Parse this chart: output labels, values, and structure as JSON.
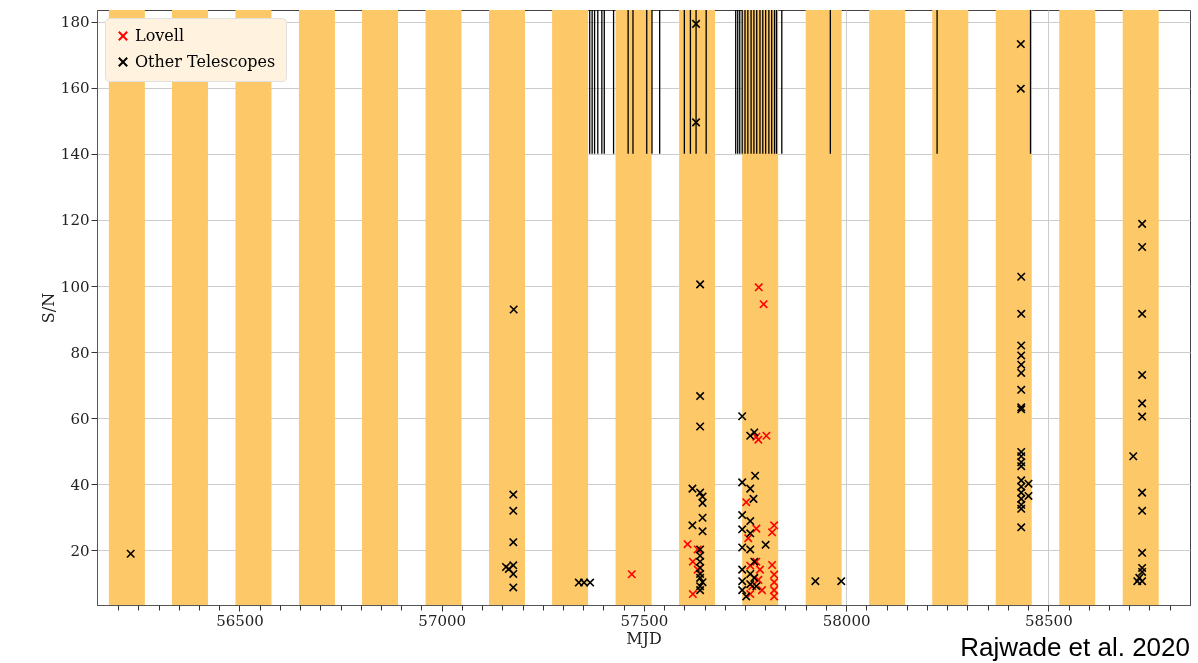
{
  "chart_data": {
    "type": "scatter",
    "xlabel": "MJD",
    "ylabel": "S/N",
    "xlim": [
      56160,
      58838
    ],
    "ylim": [
      3.5,
      183.5
    ],
    "xticks": [
      {
        "value": 56200,
        "label": null
      },
      {
        "value": 56250,
        "label": null
      },
      {
        "value": 56300,
        "label": null
      },
      {
        "value": 56350,
        "label": null
      },
      {
        "value": 56400,
        "label": null
      },
      {
        "value": 56450,
        "label": null
      },
      56500,
      {
        "value": 56550,
        "label": null
      },
      {
        "value": 56600,
        "label": null
      },
      {
        "value": 56650,
        "label": null
      },
      {
        "value": 56700,
        "label": null
      },
      {
        "value": 56750,
        "label": null
      },
      {
        "value": 56800,
        "label": null
      },
      {
        "value": 56850,
        "label": null
      },
      {
        "value": 56900,
        "label": null
      },
      {
        "value": 56950,
        "label": null
      },
      57000,
      {
        "value": 57050,
        "label": null
      },
      {
        "value": 57100,
        "label": null
      },
      {
        "value": 57150,
        "label": null
      },
      {
        "value": 57200,
        "label": null
      },
      {
        "value": 57250,
        "label": null
      },
      {
        "value": 57300,
        "label": null
      },
      {
        "value": 57350,
        "label": null
      },
      {
        "value": 57400,
        "label": null
      },
      {
        "value": 57450,
        "label": null
      },
      57500,
      {
        "value": 57550,
        "label": null
      },
      {
        "value": 57600,
        "label": null
      },
      {
        "value": 57650,
        "label": null
      },
      {
        "value": 57700,
        "label": null
      },
      {
        "value": 57750,
        "label": null
      },
      {
        "value": 57800,
        "label": null
      },
      {
        "value": 57850,
        "label": null
      },
      {
        "value": 57900,
        "label": null
      },
      {
        "value": 57950,
        "label": null
      },
      58000,
      {
        "value": 58050,
        "label": null
      },
      {
        "value": 58100,
        "label": null
      },
      {
        "value": 58150,
        "label": null
      },
      {
        "value": 58200,
        "label": null
      },
      {
        "value": 58250,
        "label": null
      },
      {
        "value": 58300,
        "label": null
      },
      {
        "value": 58350,
        "label": null
      },
      {
        "value": 58400,
        "label": null
      },
      {
        "value": 58450,
        "label": null
      },
      58500,
      {
        "value": 58550,
        "label": null
      },
      {
        "value": 58600,
        "label": null
      },
      {
        "value": 58650,
        "label": null
      },
      {
        "value": 58700,
        "label": null
      },
      {
        "value": 58750,
        "label": null
      },
      {
        "value": 58800,
        "label": null
      }
    ],
    "yticks": [
      20,
      40,
      60,
      80,
      100,
      120,
      140,
      160,
      180
    ],
    "grid": true,
    "legend": "top left",
    "marker": "cross",
    "annotations": [
      "Rajwade et al. 2020"
    ],
    "bands": [
      {
        "axis": "x",
        "from": 56177,
        "to": 56266,
        "color": "#fdc867"
      },
      {
        "axis": "x",
        "from": 56333,
        "to": 56422,
        "color": "#fdc867"
      },
      {
        "axis": "x",
        "from": 56490,
        "to": 56579,
        "color": "#fdc867"
      },
      {
        "axis": "x",
        "from": 56647,
        "to": 56736,
        "color": "#fdc867"
      },
      {
        "axis": "x",
        "from": 56803,
        "to": 56892,
        "color": "#fdc867"
      },
      {
        "axis": "x",
        "from": 56960,
        "to": 57049,
        "color": "#fdc867"
      },
      {
        "axis": "x",
        "from": 57117,
        "to": 57206,
        "color": "#fdc867"
      },
      {
        "axis": "x",
        "from": 57273,
        "to": 57362,
        "color": "#fdc867"
      },
      {
        "axis": "x",
        "from": 57430,
        "to": 57519,
        "color": "#fdc867"
      },
      {
        "axis": "x",
        "from": 57587,
        "to": 57676,
        "color": "#fdc867"
      },
      {
        "axis": "x",
        "from": 57743,
        "to": 57832,
        "color": "#fdc867"
      },
      {
        "axis": "x",
        "from": 57900,
        "to": 57989,
        "color": "#fdc867"
      },
      {
        "axis": "x",
        "from": 58057,
        "to": 58146,
        "color": "#fdc867"
      },
      {
        "axis": "x",
        "from": 58213,
        "to": 58302,
        "color": "#fdc867"
      },
      {
        "axis": "x",
        "from": 58370,
        "to": 58459,
        "color": "#fdc867"
      },
      {
        "axis": "x",
        "from": 58527,
        "to": 58616,
        "color": "#fdc867"
      },
      {
        "axis": "x",
        "from": 58684,
        "to": 58773,
        "color": "#fdc867"
      }
    ],
    "series": [
      {
        "type": "bar",
        "color": "#000000",
        "x": [
          57366,
          57372,
          57378,
          57386,
          57396,
          57402,
          57425,
          57461,
          57473,
          57507,
          57520,
          57539,
          57600,
          57615,
          57629,
          57654,
          57727,
          57732,
          57737,
          57743,
          57750,
          57757,
          57765,
          57772,
          57779,
          57787,
          57794,
          57801,
          57809,
          57816,
          57823,
          57828,
          57841,
          57961,
          58225,
          58456
        ],
        "base": [
          140,
          140,
          140,
          140,
          140,
          140,
          140,
          140,
          140,
          140,
          140,
          140,
          140,
          140,
          140,
          140,
          140,
          140,
          140,
          140,
          140,
          140,
          140,
          140,
          140,
          140,
          140,
          140,
          140,
          140,
          140,
          140,
          140,
          140,
          140,
          140
        ],
        "values": [
          43.5,
          43.5,
          43.5,
          43.5,
          43.5,
          43.5,
          43.5,
          43.5,
          43.5,
          43.5,
          43.5,
          43.5,
          43.5,
          43.5,
          43.5,
          43.5,
          43.5,
          43.5,
          43.5,
          43.5,
          43.5,
          43.5,
          43.5,
          43.5,
          43.5,
          43.5,
          43.5,
          43.5,
          43.5,
          43.5,
          43.5,
          43.5,
          43.5,
          43.5,
          43.5,
          43.5
        ]
      },
      {
        "name": "Lovell",
        "color": "#ff0000",
        "x": [
          57784,
          57796,
          57470,
          57608,
          57633,
          57621,
          57633,
          57621,
          57778,
          57783,
          57803,
          57753,
          57778,
          57758,
          57822,
          57817,
          57763,
          57778,
          57787,
          57817,
          57822,
          57822,
          57822,
          57822,
          57792,
          57768,
          57783,
          57763
        ],
        "values": [
          99.6,
          94.5,
          12.8,
          21.9,
          20.3,
          16.6,
          14.2,
          6.8,
          54.4,
          53.5,
          54.7,
          34.6,
          26.6,
          23.7,
          27.6,
          25.5,
          15.4,
          16.6,
          14.2,
          15.6,
          12.7,
          10.4,
          8.0,
          6.1,
          8.0,
          9.2,
          11.1,
          6.8
        ]
      },
      {
        "name": "Other Telescopes",
        "color": "#000000",
        "x": [
          57629,
          57629,
          58432,
          58432,
          58732,
          58732,
          58433,
          57639,
          58433,
          58732,
          56231,
          57177,
          57177,
          57177,
          57159,
          57166,
          57177,
          57177,
          57177,
          57339,
          57352,
          57367,
          57178,
          57639,
          57639,
          57743,
          57763,
          57773,
          58433,
          58433,
          58433,
          58433,
          58433,
          58433,
          58433,
          58732,
          58732,
          58732,
          58710,
          58433,
          58433,
          58433,
          58433,
          58433,
          58451,
          58433,
          58433,
          58451,
          58433,
          58433,
          58433,
          58433,
          58732,
          58732,
          58732,
          58732,
          58732,
          58725,
          58720,
          58732,
          57924,
          57988,
          57620,
          57639,
          57645,
          57645,
          57645,
          57620,
          57645,
          57639,
          57639,
          57639,
          57639,
          57639,
          57639,
          57645,
          57639,
          57639,
          57743,
          57763,
          57775,
          57771,
          57743,
          57763,
          57743,
          57763,
          57743,
          57763,
          57801,
          57743,
          57763,
          57773,
          57743,
          57763,
          57778,
          57743,
          57753,
          57773
        ],
        "values": [
          179.3,
          149.5,
          173.2,
          159.7,
          118.8,
          111.8,
          102.8,
          100.5,
          91.6,
          91.6,
          19.0,
          36.9,
          32.0,
          22.5,
          15.0,
          14.4,
          15.5,
          12.9,
          8.8,
          10.3,
          10.3,
          10.3,
          92.9,
          66.7,
          57.5,
          60.6,
          54.7,
          55.7,
          82.0,
          79.0,
          76.2,
          73.7,
          68.6,
          63.3,
          62.7,
          73.1,
          64.5,
          60.5,
          48.5,
          49.8,
          48.5,
          46.7,
          45.5,
          41.2,
          40.2,
          39.3,
          37.5,
          36.5,
          35.6,
          33.8,
          32.6,
          27.0,
          37.5,
          32.0,
          19.3,
          14.7,
          13.5,
          11.7,
          10.7,
          10.7,
          10.7,
          10.7,
          38.7,
          37.5,
          36.3,
          34.4,
          29.9,
          27.6,
          25.8,
          20.3,
          18.4,
          16.6,
          14.7,
          12.9,
          11.7,
          10.4,
          9.2,
          8.0,
          40.6,
          38.7,
          42.6,
          35.6,
          30.7,
          28.9,
          26.4,
          25.2,
          20.9,
          20.3,
          21.7,
          14.2,
          12.9,
          11.7,
          10.7,
          9.8,
          9.2,
          8.0,
          6.1,
          16.6
        ]
      }
    ]
  }
}
